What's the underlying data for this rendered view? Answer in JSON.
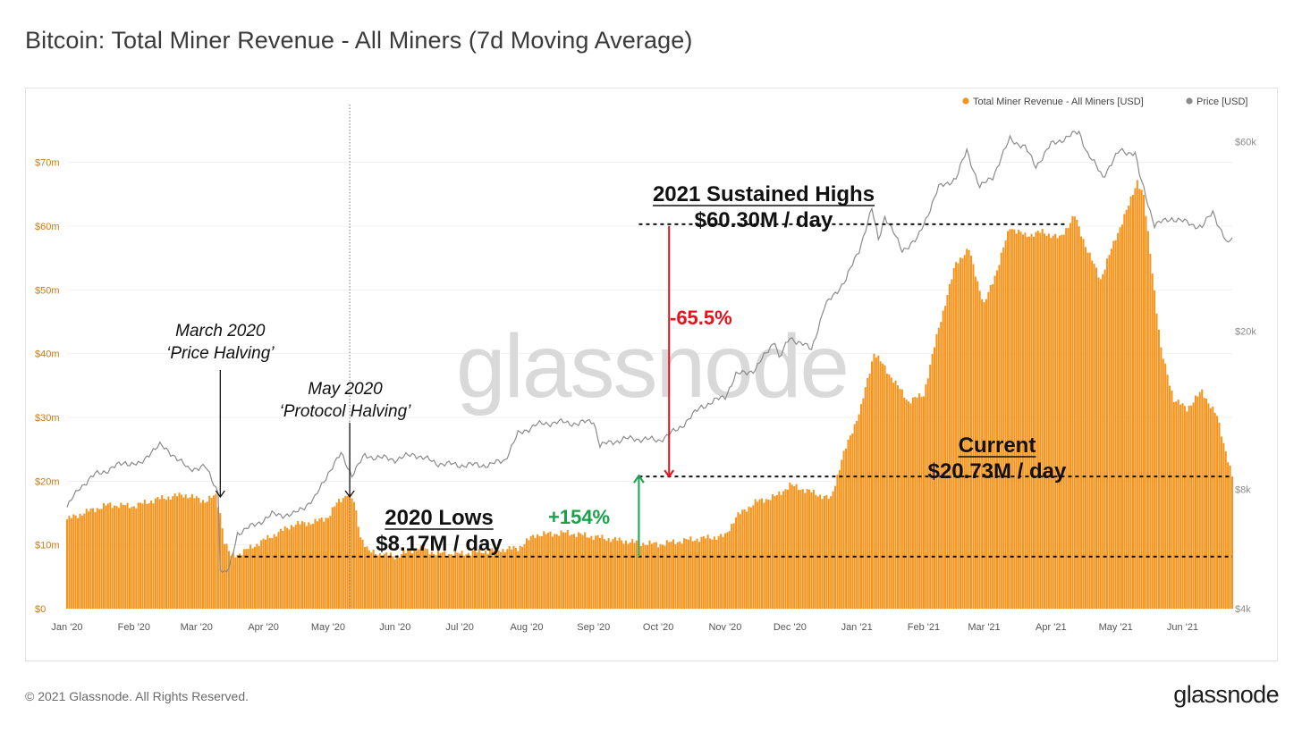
{
  "page": {
    "title": "Bitcoin: Total Miner Revenue - All Miners (7d Moving Average)",
    "copyright": "© 2021 Glassnode. All Rights Reserved.",
    "logo": "glassnode",
    "watermark": "glassnode"
  },
  "colors": {
    "bar": "#f7931a",
    "bar_edge": "#e8891a",
    "price": "#8a8a8a",
    "grid": "#f0f0f0",
    "left_tick": "#c77a12",
    "right_tick": "#8a8a8a",
    "red": "#e8101a",
    "green": "#17a34a",
    "watermark": "#d9d9d9"
  },
  "chart_data": {
    "type": "bar",
    "title": "Bitcoin: Total Miner Revenue - All Miners (7d Moving Average)",
    "legend": [
      "Total Miner Revenue - All Miners [USD]",
      "Price [USD]"
    ],
    "legend_position": "top-right",
    "x_range": [
      "2020-01-01",
      "2021-06-24"
    ],
    "x_ticks": [
      "Jan '20",
      "Feb '20",
      "Mar '20",
      "Apr '20",
      "May '20",
      "Jun '20",
      "Jul '20",
      "Aug '20",
      "Sep '20",
      "Oct '20",
      "Nov '20",
      "Dec '20",
      "Jan '21",
      "Feb '21",
      "Mar '21",
      "Apr '21",
      "May '21",
      "Jun '21"
    ],
    "y_left": {
      "label": "Total Miner Revenue - All Miners [USD]",
      "range_musd": [
        0,
        75
      ],
      "ticks": [
        {
          "value": 0,
          "label": "$0"
        },
        {
          "value": 10,
          "label": "$10m"
        },
        {
          "value": 20,
          "label": "$20m"
        },
        {
          "value": 30,
          "label": "$30m"
        },
        {
          "value": 40,
          "label": "$40m"
        },
        {
          "value": 50,
          "label": "$50m"
        },
        {
          "value": 60,
          "label": "$60m"
        },
        {
          "value": 70,
          "label": "$70m"
        }
      ]
    },
    "y_right": {
      "label": "Price [USD]",
      "scale": "log",
      "range_usd": [
        4000,
        64000
      ],
      "ticks": [
        {
          "value": 4000,
          "label": "$4k"
        },
        {
          "value": 8000,
          "label": "$8k"
        },
        {
          "value": 20000,
          "label": "$20k"
        },
        {
          "value": 60000,
          "label": "$60k"
        }
      ]
    },
    "series": [
      {
        "name": "Total Miner Revenue - All Miners [USD]",
        "type": "bar",
        "unit": "million USD",
        "points": [
          [
            "2020-01-01",
            14.0
          ],
          [
            "2020-01-10",
            15.2
          ],
          [
            "2020-01-20",
            16.3
          ],
          [
            "2020-02-01",
            16.1
          ],
          [
            "2020-02-12",
            17.2
          ],
          [
            "2020-02-24",
            17.9
          ],
          [
            "2020-03-05",
            16.9
          ],
          [
            "2020-03-10",
            17.7
          ],
          [
            "2020-03-12",
            15.0
          ],
          [
            "2020-03-14",
            10.5
          ],
          [
            "2020-03-17",
            8.2
          ],
          [
            "2020-03-22",
            8.8
          ],
          [
            "2020-04-01",
            10.7
          ],
          [
            "2020-04-15",
            13.2
          ],
          [
            "2020-04-25",
            13.6
          ],
          [
            "2020-05-01",
            14.4
          ],
          [
            "2020-05-05",
            16.5
          ],
          [
            "2020-05-10",
            18.1
          ],
          [
            "2020-05-13",
            16.7
          ],
          [
            "2020-05-16",
            11.4
          ],
          [
            "2020-05-20",
            8.9
          ],
          [
            "2020-06-01",
            8.2
          ],
          [
            "2020-06-12",
            9.5
          ],
          [
            "2020-06-20",
            8.7
          ],
          [
            "2020-07-01",
            8.6
          ],
          [
            "2020-07-15",
            9.1
          ],
          [
            "2020-07-28",
            9.5
          ],
          [
            "2020-08-05",
            11.6
          ],
          [
            "2020-08-20",
            11.9
          ],
          [
            "2020-09-01",
            11.3
          ],
          [
            "2020-09-20",
            10.4
          ],
          [
            "2020-10-01",
            10.1
          ],
          [
            "2020-10-15",
            10.8
          ],
          [
            "2020-11-01",
            11.4
          ],
          [
            "2020-11-06",
            14.4
          ],
          [
            "2020-11-15",
            16.7
          ],
          [
            "2020-11-25",
            17.7
          ],
          [
            "2020-12-01",
            19.4
          ],
          [
            "2020-12-10",
            18.4
          ],
          [
            "2020-12-20",
            17.2
          ],
          [
            "2020-12-25",
            23.4
          ],
          [
            "2021-01-03",
            31.6
          ],
          [
            "2021-01-09",
            40.2
          ],
          [
            "2021-01-15",
            37.3
          ],
          [
            "2021-01-25",
            32.5
          ],
          [
            "2021-02-01",
            33.6
          ],
          [
            "2021-02-08",
            44.1
          ],
          [
            "2021-02-16",
            54.3
          ],
          [
            "2021-02-22",
            56.3
          ],
          [
            "2021-03-01",
            47.6
          ],
          [
            "2021-03-07",
            53.2
          ],
          [
            "2021-03-13",
            59.9
          ],
          [
            "2021-03-20",
            58.5
          ],
          [
            "2021-03-28",
            59.1
          ],
          [
            "2021-04-05",
            58.1
          ],
          [
            "2021-04-12",
            61.6
          ],
          [
            "2021-04-18",
            56.1
          ],
          [
            "2021-04-24",
            51.7
          ],
          [
            "2021-05-01",
            58.2
          ],
          [
            "2021-05-07",
            63.2
          ],
          [
            "2021-05-11",
            67.2
          ],
          [
            "2021-05-14",
            64.6
          ],
          [
            "2021-05-18",
            52.9
          ],
          [
            "2021-05-22",
            40.6
          ],
          [
            "2021-05-28",
            32.8
          ],
          [
            "2021-06-03",
            31.4
          ],
          [
            "2021-06-10",
            34.1
          ],
          [
            "2021-06-17",
            30.1
          ],
          [
            "2021-06-24",
            20.73
          ]
        ]
      },
      {
        "name": "Price [USD]",
        "type": "line",
        "unit": "USD",
        "points": [
          [
            "2020-01-01",
            7200
          ],
          [
            "2020-01-07",
            8100
          ],
          [
            "2020-01-14",
            8700
          ],
          [
            "2020-01-19",
            8900
          ],
          [
            "2020-01-28",
            9350
          ],
          [
            "2020-02-04",
            9200
          ],
          [
            "2020-02-09",
            10000
          ],
          [
            "2020-02-13",
            10300
          ],
          [
            "2020-02-19",
            9800
          ],
          [
            "2020-02-26",
            9000
          ],
          [
            "2020-03-05",
            9100
          ],
          [
            "2020-03-11",
            7900
          ],
          [
            "2020-03-12",
            5100
          ],
          [
            "2020-03-13",
            4900
          ],
          [
            "2020-03-16",
            5000
          ],
          [
            "2020-03-20",
            6200
          ],
          [
            "2020-03-28",
            6500
          ],
          [
            "2020-04-05",
            6900
          ],
          [
            "2020-04-15",
            6900
          ],
          [
            "2020-04-25",
            7600
          ],
          [
            "2020-05-01",
            8800
          ],
          [
            "2020-05-07",
            9800
          ],
          [
            "2020-05-12",
            8700
          ],
          [
            "2020-05-18",
            9700
          ],
          [
            "2020-06-01",
            9500
          ],
          [
            "2020-06-10",
            9800
          ],
          [
            "2020-06-20",
            9300
          ],
          [
            "2020-07-01",
            9200
          ],
          [
            "2020-07-15",
            9200
          ],
          [
            "2020-07-22",
            9500
          ],
          [
            "2020-07-28",
            11000
          ],
          [
            "2020-08-05",
            11600
          ],
          [
            "2020-08-15",
            11800
          ],
          [
            "2020-08-25",
            11700
          ],
          [
            "2020-09-01",
            11900
          ],
          [
            "2020-09-04",
            10300
          ],
          [
            "2020-09-15",
            10700
          ],
          [
            "2020-09-25",
            10700
          ],
          [
            "2020-10-01",
            10600
          ],
          [
            "2020-10-10",
            11300
          ],
          [
            "2020-10-21",
            12900
          ],
          [
            "2020-11-01",
            13700
          ],
          [
            "2020-11-06",
            15500
          ],
          [
            "2020-11-15",
            16000
          ],
          [
            "2020-11-24",
            19000
          ],
          [
            "2020-11-26",
            17000
          ],
          [
            "2020-12-01",
            19300
          ],
          [
            "2020-12-11",
            18000
          ],
          [
            "2020-12-17",
            23000
          ],
          [
            "2020-12-27",
            27000
          ],
          [
            "2021-01-02",
            32000
          ],
          [
            "2021-01-08",
            40500
          ],
          [
            "2021-01-11",
            34000
          ],
          [
            "2021-01-14",
            39000
          ],
          [
            "2021-01-22",
            32000
          ],
          [
            "2021-01-29",
            34000
          ],
          [
            "2021-02-08",
            46000
          ],
          [
            "2021-02-16",
            48500
          ],
          [
            "2021-02-21",
            57000
          ],
          [
            "2021-02-27",
            46000
          ],
          [
            "2021-03-05",
            49000
          ],
          [
            "2021-03-13",
            61000
          ],
          [
            "2021-03-20",
            58000
          ],
          [
            "2021-03-25",
            52000
          ],
          [
            "2021-04-01",
            59000
          ],
          [
            "2021-04-14",
            63500
          ],
          [
            "2021-04-18",
            56000
          ],
          [
            "2021-04-25",
            49000
          ],
          [
            "2021-05-03",
            57000
          ],
          [
            "2021-05-10",
            56000
          ],
          [
            "2021-05-12",
            49500
          ],
          [
            "2021-05-19",
            37000
          ],
          [
            "2021-05-27",
            38500
          ],
          [
            "2021-06-03",
            37500
          ],
          [
            "2021-06-10",
            36500
          ],
          [
            "2021-06-15",
            40000
          ],
          [
            "2021-06-22",
            32800
          ],
          [
            "2021-06-24",
            34500
          ]
        ]
      }
    ],
    "annotations": {
      "march_label": [
        "March 2020",
        "‘Price Halving’"
      ],
      "may_label": [
        "May 2020",
        "‘Protocol Halving’"
      ],
      "lows_label": [
        "2020 Lows",
        "$8.17M / day"
      ],
      "highs_label": [
        "2021 Sustained Highs",
        "$60.30M / day"
      ],
      "current_label": [
        "Current",
        "$20.73M / day"
      ],
      "drop_pct": "-65.5%",
      "rise_pct": "+154%",
      "lows_value": 8.17,
      "highs_value": 60.3,
      "current_value": 20.73,
      "march_date": "2020-03-12",
      "may_date": "2020-05-11",
      "lows_from_date": "2020-03-20",
      "highs_from_date": "2020-09-22",
      "current_from_date": "2020-09-22",
      "drop_date": "2020-10-06",
      "rise_date": "2020-09-22"
    }
  }
}
